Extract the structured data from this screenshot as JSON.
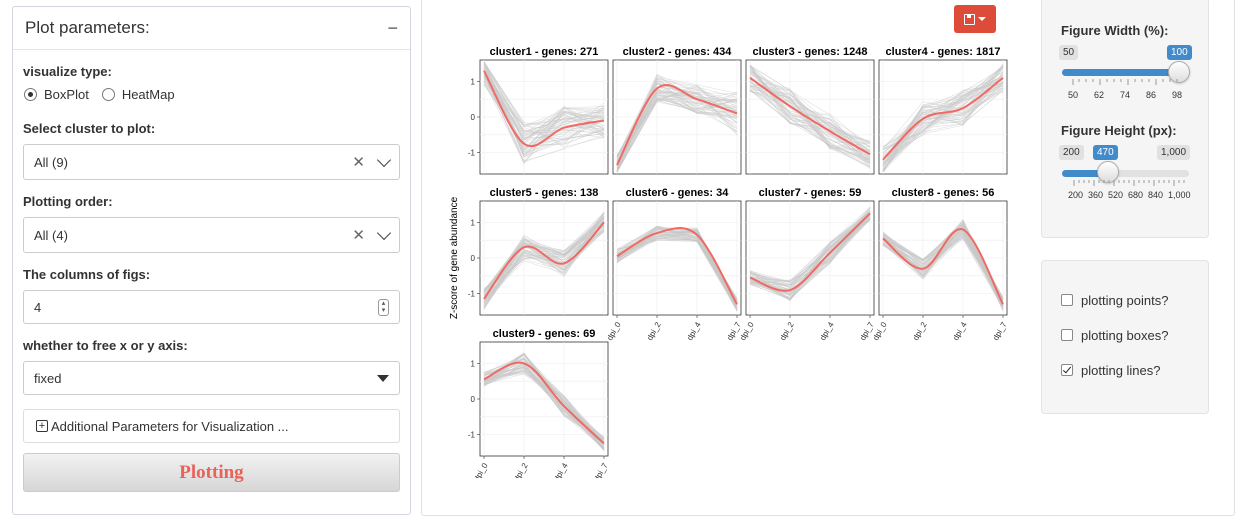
{
  "left_panel": {
    "title": "Plot parameters:",
    "collapse_symbol": "−",
    "visualize_type": {
      "label": "visualize type:",
      "options": [
        "BoxPlot",
        "HeatMap"
      ],
      "selected": "BoxPlot"
    },
    "cluster_select": {
      "label": "Select cluster to plot:",
      "value": "All (9)",
      "clear": "✕"
    },
    "plotting_order": {
      "label": "Plotting order:",
      "value": "All (4)",
      "clear": "✕"
    },
    "columns": {
      "label": "The columns of figs:",
      "value": "4"
    },
    "free_axis": {
      "label": "whether to free x or y axis:",
      "value": "fixed"
    },
    "additional_params": {
      "label": "Additional Parameters for Visualization ..."
    },
    "plot_button": {
      "label": "Plotting"
    }
  },
  "figure": {
    "y_axis_label": "Z-score of gene abundance",
    "save_icon": "save-icon",
    "colors": {
      "trend_line": "#f06a63",
      "gene_lines": "#c8c8c8",
      "panel_bg": "#ffffff",
      "strip_text": "#000000"
    }
  },
  "chart_data": {
    "type": "line",
    "facet_columns": 4,
    "x_categories": [
      "dpi_0",
      "dpi_2",
      "dpi_4",
      "dpi_7"
    ],
    "y_ticks": [
      "1",
      "0",
      "-1"
    ],
    "ylim": [
      -1.6,
      1.6
    ],
    "ylabel": "Z-score of gene abundance",
    "panels": [
      {
        "title": "cluster1 - genes: 271",
        "trend": [
          1.3,
          -0.75,
          -0.3,
          -0.1
        ],
        "spread": [
          0.4,
          0.6,
          0.6,
          0.5
        ]
      },
      {
        "title": "cluster2 - genes: 434",
        "trend": [
          -1.35,
          0.8,
          0.5,
          0.1
        ],
        "spread": [
          0.3,
          0.4,
          0.4,
          0.6
        ]
      },
      {
        "title": "cluster3 - genes: 1248",
        "trend": [
          1.1,
          0.3,
          -0.4,
          -1.05
        ],
        "spread": [
          0.4,
          0.5,
          0.5,
          0.4
        ]
      },
      {
        "title": "cluster4 - genes: 1817",
        "trend": [
          -1.2,
          -0.05,
          0.25,
          1.1
        ],
        "spread": [
          0.4,
          0.5,
          0.5,
          0.4
        ]
      },
      {
        "title": "cluster5 - genes: 138",
        "trend": [
          -1.15,
          0.3,
          -0.15,
          1.0
        ],
        "spread": [
          0.3,
          0.4,
          0.4,
          0.3
        ]
      },
      {
        "title": "cluster6 - genes: 34",
        "trend": [
          0.05,
          0.7,
          0.65,
          -1.3
        ],
        "spread": [
          0.2,
          0.2,
          0.2,
          0.2
        ]
      },
      {
        "title": "cluster7 - genes: 59",
        "trend": [
          -0.55,
          -0.9,
          0.15,
          1.25
        ],
        "spread": [
          0.2,
          0.3,
          0.3,
          0.2
        ]
      },
      {
        "title": "cluster8 - genes: 56",
        "trend": [
          0.55,
          -0.3,
          0.8,
          -1.3
        ],
        "spread": [
          0.2,
          0.3,
          0.3,
          0.2
        ]
      },
      {
        "title": "cluster9 - genes: 69",
        "trend": [
          0.55,
          1.0,
          -0.2,
          -1.25
        ],
        "spread": [
          0.2,
          0.3,
          0.3,
          0.2
        ]
      }
    ]
  },
  "figure_width": {
    "label": "Figure Width (%):",
    "min": 50,
    "max": 100,
    "value": 100,
    "min_label": "50",
    "value_label": "100",
    "tick_labels": [
      "50",
      "62",
      "74",
      "86",
      "98"
    ]
  },
  "figure_height": {
    "label": "Figure Height (px):",
    "min": 200,
    "max": 1000,
    "value": 470,
    "min_label": "200",
    "value_label": "470",
    "max_label": "1,000",
    "tick_labels": [
      "200",
      "360",
      "520",
      "680",
      "840",
      "1,000"
    ]
  },
  "options": [
    {
      "label": "plotting points?",
      "checked": false
    },
    {
      "label": "plotting boxes?",
      "checked": false
    },
    {
      "label": "plotting lines?",
      "checked": true
    }
  ]
}
